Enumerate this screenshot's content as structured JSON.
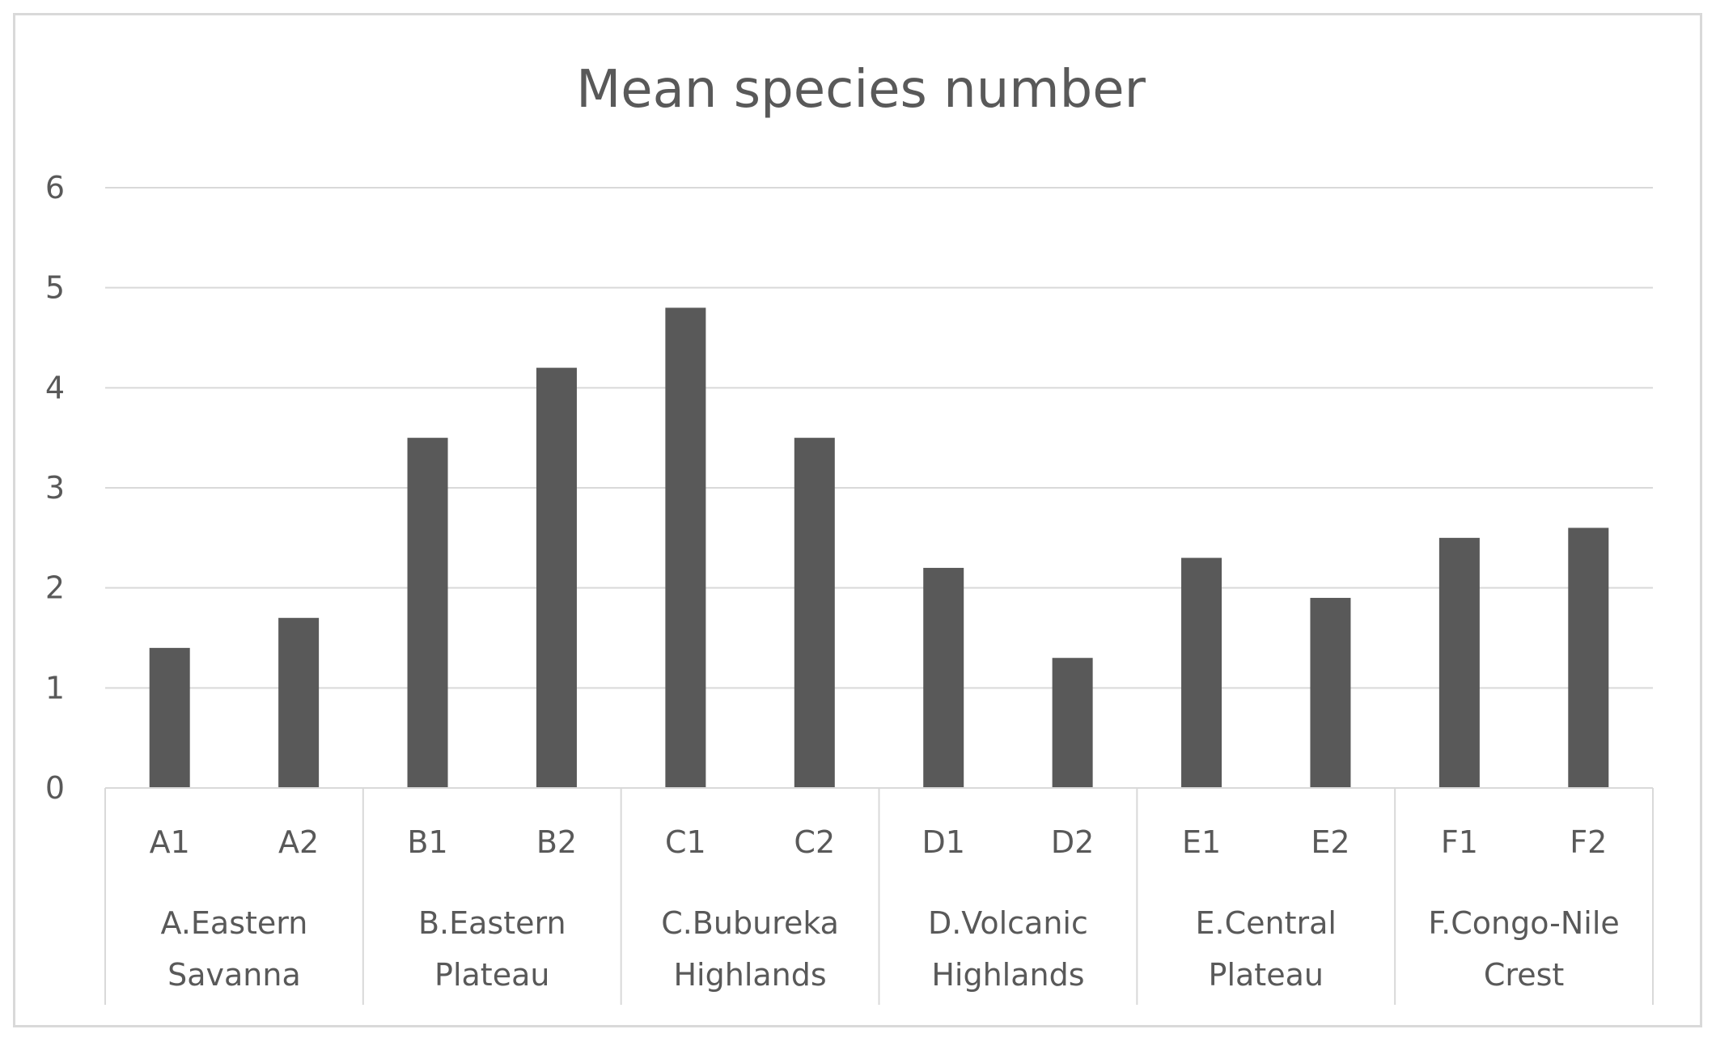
{
  "chart_data": {
    "type": "bar",
    "title": "Mean species number",
    "xlabel": "",
    "ylabel": "",
    "ylim": [
      0,
      6
    ],
    "yticks": [
      "0",
      "1",
      "2",
      "3",
      "4",
      "5",
      "6"
    ],
    "grid": true,
    "legend": "none",
    "bar_color": "#595959",
    "categories": [
      "A1",
      "A2",
      "B1",
      "B2",
      "C1",
      "C2",
      "D1",
      "D2",
      "E1",
      "E2",
      "F1",
      "F2"
    ],
    "values": [
      1.4,
      1.7,
      3.5,
      4.2,
      4.8,
      3.5,
      2.2,
      1.3,
      2.3,
      1.9,
      2.5,
      2.6
    ],
    "groups": [
      {
        "line1": "A.Eastern",
        "line2": "Savanna",
        "categories": [
          "A1",
          "A2"
        ]
      },
      {
        "line1": "B.Eastern",
        "line2": "Plateau",
        "categories": [
          "B1",
          "B2"
        ]
      },
      {
        "line1": "C.Bubureka",
        "line2": "Highlands",
        "categories": [
          "C1",
          "C2"
        ]
      },
      {
        "line1": "D.Volcanic",
        "line2": "Highlands",
        "categories": [
          "D1",
          "D2"
        ]
      },
      {
        "line1": "E.Central",
        "line2": "Plateau",
        "categories": [
          "E1",
          "E2"
        ]
      },
      {
        "line1": "F.Congo-Nile",
        "line2": "Crest",
        "categories": [
          "F1",
          "F2"
        ]
      }
    ]
  }
}
